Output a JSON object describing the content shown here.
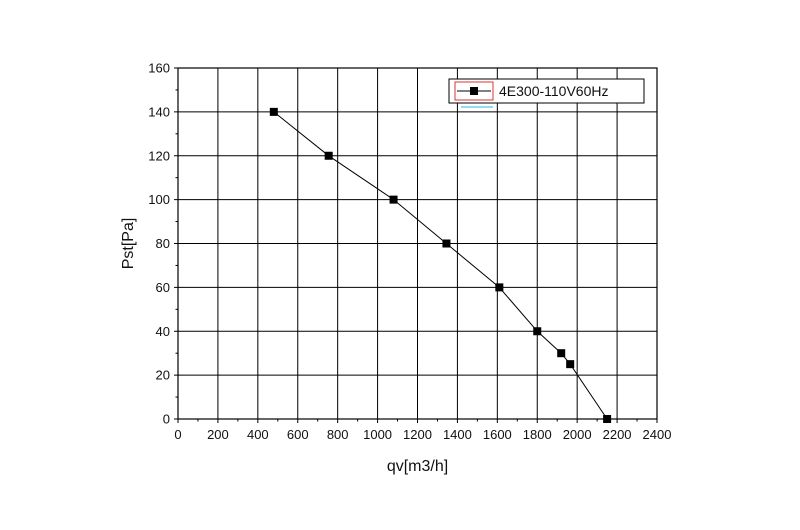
{
  "chart_data": {
    "type": "line",
    "xlabel": "qv[m3/h]",
    "ylabel": "Pst[Pa]",
    "xlim": [
      0,
      2400
    ],
    "ylim": [
      0,
      160
    ],
    "x_ticks": [
      0,
      200,
      400,
      600,
      800,
      1000,
      1200,
      1400,
      1600,
      1800,
      2000,
      2200,
      2400
    ],
    "y_ticks": [
      0,
      20,
      40,
      60,
      80,
      100,
      120,
      140,
      160
    ],
    "grid": true,
    "legend_position": "top-right",
    "series": [
      {
        "name": "4E300-110V60Hz",
        "marker": "square",
        "color": "#000000",
        "x": [
          480,
          755,
          1080,
          1345,
          1610,
          1800,
          1920,
          1965,
          2150
        ],
        "y": [
          140,
          120,
          100,
          80,
          60,
          40,
          30,
          25,
          0
        ]
      }
    ]
  }
}
